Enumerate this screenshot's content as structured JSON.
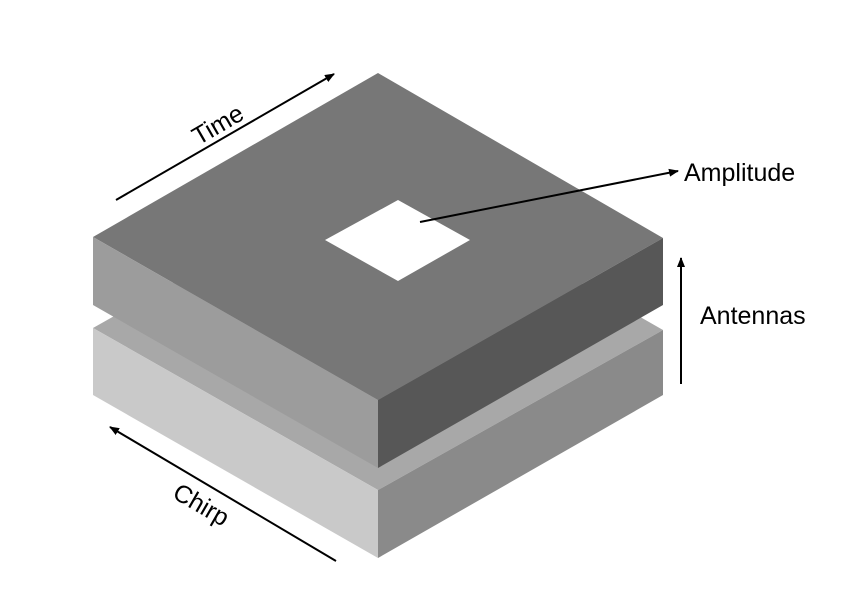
{
  "labels": {
    "time": "Time",
    "chirp": "Chirp",
    "amplitude": "Amplitude",
    "antennas": "Antennas"
  },
  "colors": {
    "top_slab_top": "#777777",
    "top_slab_left": "#9c9c9c",
    "top_slab_right": "#575757",
    "bottom_slab_top": "#a8a8a8",
    "bottom_slab_left": "#c9c9c9",
    "bottom_slab_right": "#8a8a8a",
    "amplitude_cell": "#ffffff",
    "arrow": "#000000"
  }
}
